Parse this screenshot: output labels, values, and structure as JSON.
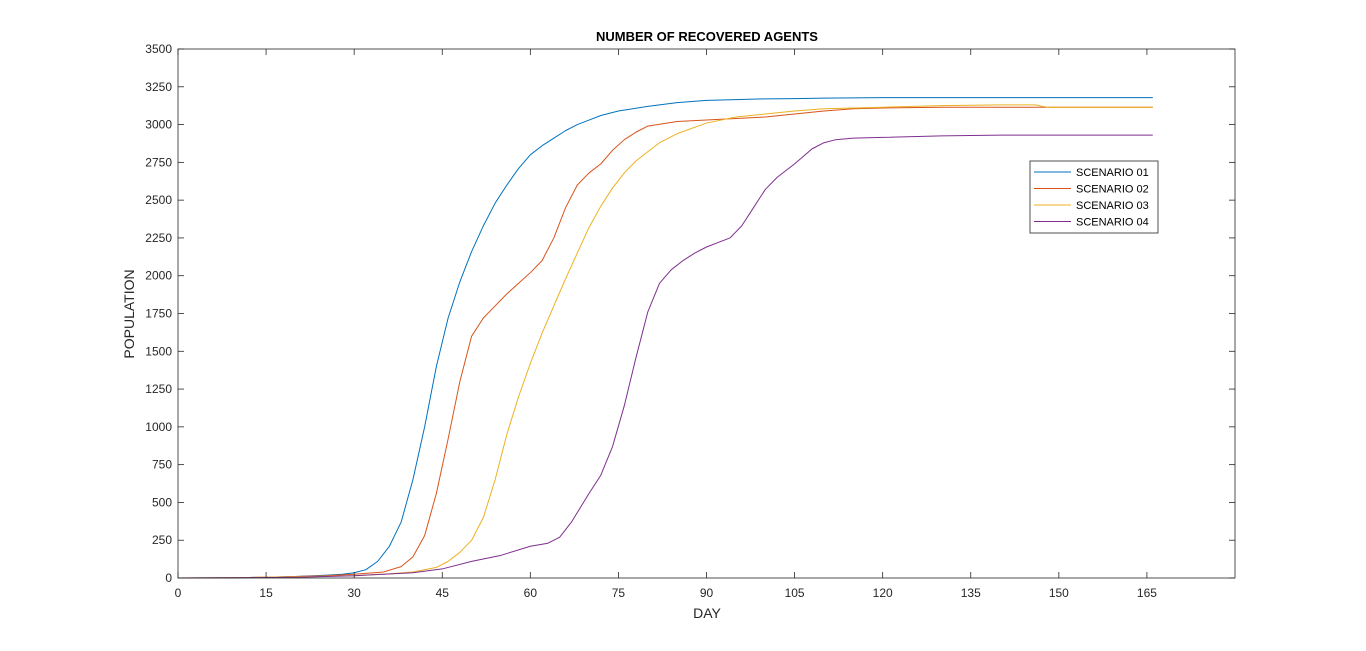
{
  "chart_data": {
    "type": "line",
    "title": "NUMBER OF RECOVERED AGENTS",
    "xlabel": "DAY",
    "ylabel": "POPULATION",
    "xlim": [
      0,
      180
    ],
    "ylim": [
      0,
      3500
    ],
    "xticks": [
      0,
      15,
      30,
      45,
      60,
      75,
      90,
      105,
      120,
      135,
      150,
      165
    ],
    "yticks": [
      0,
      250,
      500,
      750,
      1000,
      1250,
      1500,
      1750,
      2000,
      2250,
      2500,
      2750,
      3000,
      3250,
      3500
    ],
    "grid": false,
    "legend_position": "upper-right",
    "series": [
      {
        "name": "SCENARIO 01",
        "color": "#0072BD",
        "x": [
          0,
          10,
          15,
          20,
          25,
          28,
          30,
          32,
          34,
          36,
          38,
          40,
          42,
          44,
          46,
          48,
          50,
          52,
          54,
          56,
          58,
          60,
          62,
          64,
          66,
          68,
          70,
          72,
          75,
          80,
          85,
          90,
          95,
          100,
          105,
          110,
          120,
          130,
          140,
          150,
          160,
          166
        ],
        "y": [
          0,
          2,
          5,
          10,
          18,
          25,
          35,
          55,
          110,
          210,
          370,
          650,
          1000,
          1400,
          1720,
          1960,
          2160,
          2330,
          2480,
          2600,
          2710,
          2800,
          2860,
          2910,
          2960,
          3000,
          3030,
          3060,
          3090,
          3120,
          3145,
          3160,
          3165,
          3170,
          3172,
          3175,
          3178,
          3178,
          3178,
          3178,
          3178,
          3178
        ]
      },
      {
        "name": "SCENARIO 02",
        "color": "#D95319",
        "x": [
          0,
          10,
          15,
          20,
          25,
          30,
          35,
          38,
          40,
          42,
          44,
          46,
          48,
          50,
          52,
          54,
          56,
          58,
          60,
          62,
          64,
          66,
          68,
          70,
          72,
          74,
          76,
          78,
          80,
          85,
          90,
          95,
          100,
          105,
          110,
          115,
          120,
          130,
          140,
          150,
          160,
          166
        ],
        "y": [
          0,
          2,
          5,
          10,
          15,
          25,
          40,
          75,
          140,
          280,
          560,
          920,
          1300,
          1600,
          1720,
          1800,
          1880,
          1950,
          2020,
          2100,
          2250,
          2450,
          2600,
          2680,
          2740,
          2830,
          2900,
          2950,
          2990,
          3020,
          3030,
          3040,
          3050,
          3070,
          3090,
          3105,
          3110,
          3115,
          3115,
          3115,
          3115,
          3115
        ]
      },
      {
        "name": "SCENARIO 03",
        "color": "#EDB120",
        "x": [
          0,
          10,
          20,
          30,
          35,
          40,
          44,
          46,
          48,
          50,
          52,
          54,
          56,
          58,
          60,
          62,
          64,
          66,
          68,
          70,
          72,
          74,
          76,
          78,
          80,
          82,
          85,
          90,
          95,
          100,
          105,
          110,
          120,
          130,
          140,
          146,
          148,
          160,
          166
        ],
        "y": [
          0,
          2,
          8,
          15,
          25,
          40,
          70,
          110,
          170,
          250,
          400,
          650,
          950,
          1200,
          1420,
          1620,
          1800,
          1980,
          2150,
          2320,
          2460,
          2580,
          2680,
          2760,
          2820,
          2880,
          2940,
          3010,
          3050,
          3070,
          3090,
          3105,
          3115,
          3125,
          3130,
          3130,
          3115,
          3115,
          3115
        ]
      },
      {
        "name": "SCENARIO 04",
        "color": "#7E2F8E",
        "x": [
          0,
          10,
          20,
          30,
          40,
          45,
          50,
          55,
          60,
          63,
          65,
          67,
          70,
          72,
          74,
          76,
          78,
          80,
          82,
          84,
          86,
          88,
          90,
          92,
          94,
          96,
          98,
          100,
          102,
          105,
          108,
          110,
          112,
          115,
          120,
          130,
          140,
          150,
          160,
          166
        ],
        "y": [
          0,
          2,
          5,
          15,
          35,
          60,
          110,
          150,
          210,
          230,
          270,
          370,
          560,
          680,
          870,
          1140,
          1460,
          1760,
          1950,
          2040,
          2100,
          2150,
          2190,
          2220,
          2250,
          2330,
          2450,
          2570,
          2650,
          2740,
          2840,
          2880,
          2900,
          2910,
          2915,
          2925,
          2930,
          2930,
          2930,
          2930
        ]
      }
    ]
  }
}
